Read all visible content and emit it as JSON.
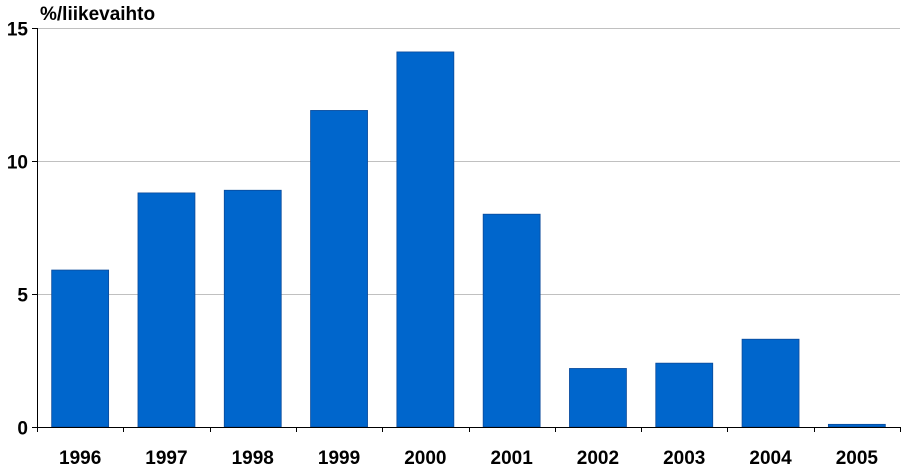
{
  "chart_data": {
    "type": "bar",
    "title": "",
    "ylabel": "%/liikevaihto",
    "xlabel": "",
    "categories": [
      "1996",
      "1997",
      "1998",
      "1999",
      "2000",
      "2001",
      "2002",
      "2003",
      "2004",
      "2005"
    ],
    "values": [
      5.9,
      8.8,
      8.9,
      11.9,
      14.1,
      8.0,
      2.2,
      2.4,
      3.3,
      0.1
    ],
    "ylim": [
      0,
      15
    ],
    "yticks": [
      0,
      5,
      10,
      15
    ],
    "grid": true,
    "bar_color": "#0066cc",
    "gridline_color": "#c0c0c0"
  }
}
